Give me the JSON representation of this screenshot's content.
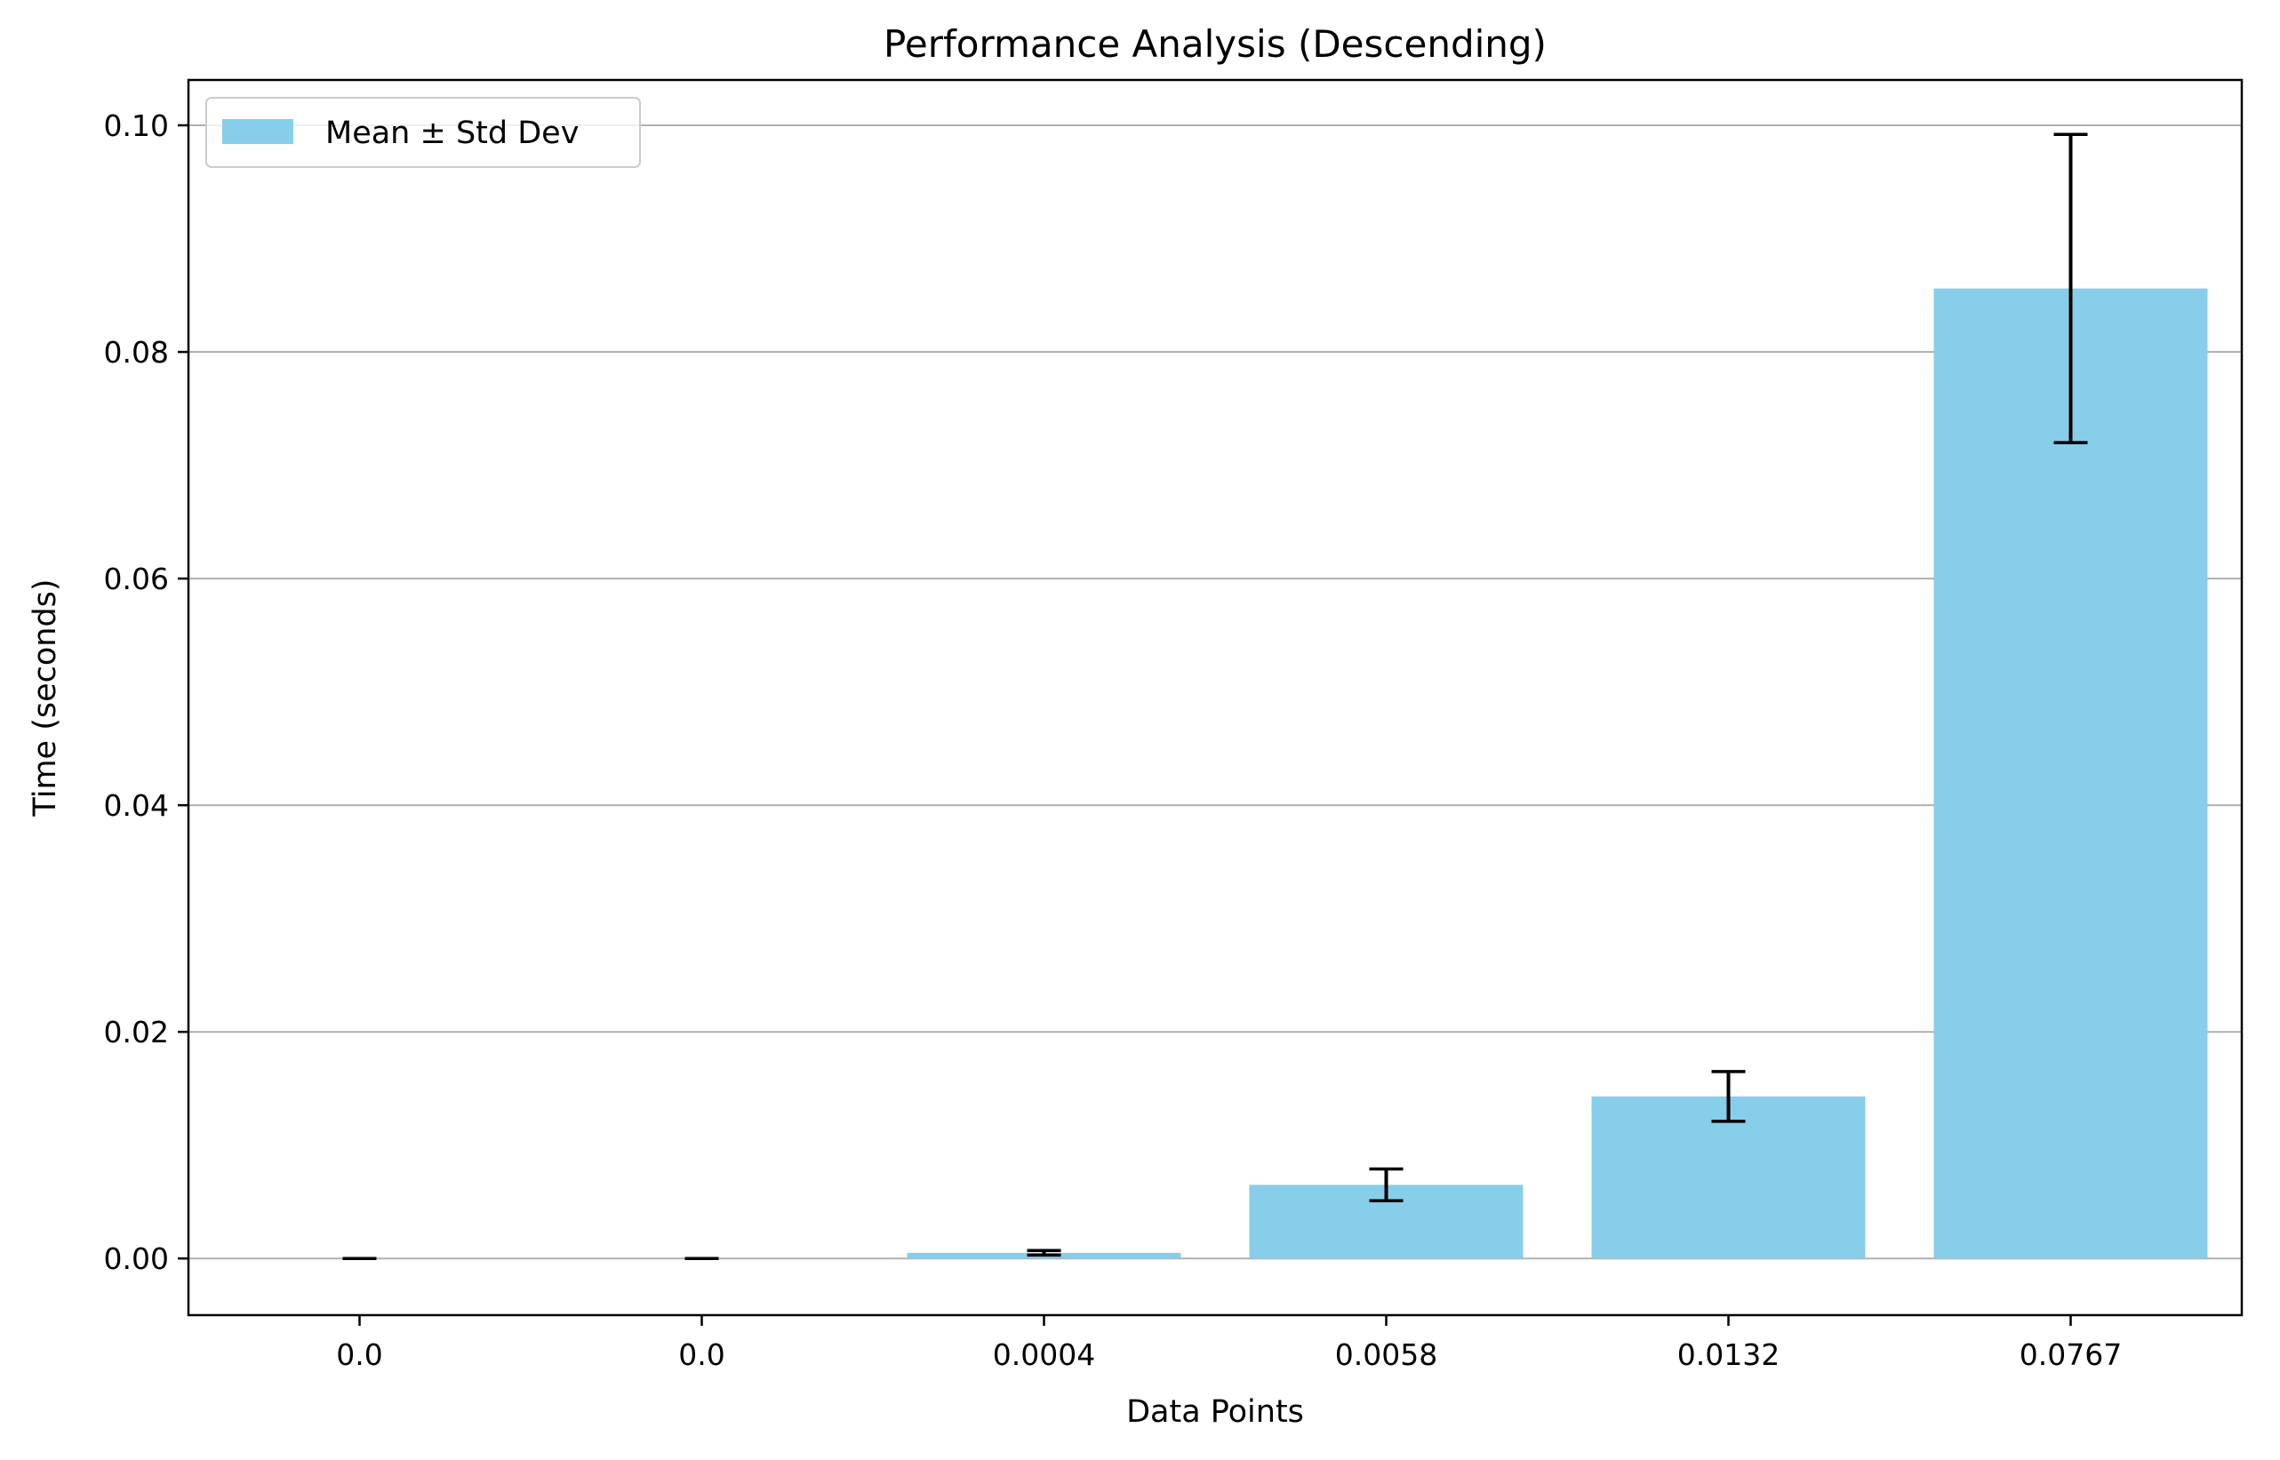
{
  "chart_data": {
    "type": "bar",
    "title": "Performance Analysis (Descending)",
    "xlabel": "Data Points",
    "ylabel": "Time (seconds)",
    "categories": [
      "0.0",
      "0.0",
      "0.0004",
      "0.0058",
      "0.0132",
      "0.0767"
    ],
    "series": [
      {
        "name": "Mean ± Std Dev",
        "values": [
          0.0,
          0.0,
          0.0005,
          0.0065,
          0.0143,
          0.0856
        ],
        "errors": [
          0.0,
          0.0,
          0.0002,
          0.0014,
          0.0022,
          0.0136
        ]
      }
    ],
    "ylim": [
      -0.005,
      0.104
    ],
    "yticks": [
      0.0,
      0.02,
      0.04,
      0.06,
      0.08,
      0.1
    ],
    "ytick_labels": [
      "0.00",
      "0.02",
      "0.04",
      "0.06",
      "0.08",
      "0.10"
    ],
    "grid": "y-major",
    "legend": "top-left",
    "colors": {
      "bar": "#87ceeb",
      "errorbar": "#000000",
      "grid": "#b0b0b0",
      "axes": "#000000"
    }
  }
}
